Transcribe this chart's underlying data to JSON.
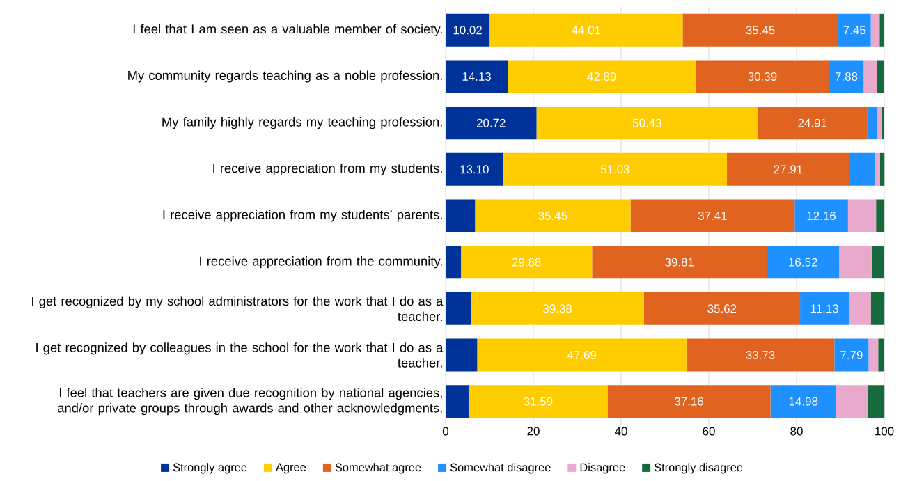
{
  "chart_data": {
    "type": "bar",
    "orientation": "horizontal",
    "stacked": true,
    "categories": [
      "I feel that I am seen as a valuable member of society.",
      "My community regards teaching as a noble profession.",
      "My family highly regards my teaching profession.",
      "I receive appreciation from my students.",
      "I receive appreciation from my students’ parents.",
      "I receive appreciation from the community.",
      "I get recognized by my school administrators for the work that I do as a teacher.",
      "I get recognized by colleagues in the school for the work that I do as a teacher.",
      "I feel that teachers are given due recognition by national agencies, and/or private groups through awards and other acknowledgments."
    ],
    "series": [
      {
        "name": "Strongly agree",
        "color": "#003399",
        "values": [
          10.02,
          14.13,
          20.72,
          13.1,
          6.7,
          3.5,
          5.8,
          7.2,
          5.3
        ],
        "value_labels": [
          "10.02",
          "14.13",
          "20.72",
          "13.10",
          null,
          null,
          null,
          null,
          null
        ]
      },
      {
        "name": "Agree",
        "color": "#ffcc00",
        "values": [
          44.01,
          42.89,
          50.43,
          51.03,
          35.45,
          29.88,
          39.38,
          47.69,
          31.59
        ],
        "value_labels": [
          "44.01",
          "42.89",
          "50.43",
          "51.03",
          "35.45",
          "29.88",
          "39.38",
          "47.69",
          "31.59"
        ]
      },
      {
        "name": "Somewhat agree",
        "color": "#e06320",
        "values": [
          35.45,
          30.39,
          24.91,
          27.91,
          37.41,
          39.81,
          35.62,
          33.73,
          37.16
        ],
        "value_labels": [
          "35.45",
          "30.39",
          "24.91",
          "27.91",
          "37.41",
          "39.81",
          "35.62",
          "33.73",
          "37.16"
        ]
      },
      {
        "name": "Somewhat disagree",
        "color": "#1e90ff",
        "values": [
          7.45,
          7.88,
          2.3,
          5.8,
          12.16,
          16.52,
          11.13,
          7.79,
          14.98
        ],
        "value_labels": [
          "7.45",
          "7.88",
          null,
          null,
          "12.16",
          "16.52",
          "11.13",
          "7.79",
          "14.98"
        ]
      },
      {
        "name": "Disagree",
        "color": "#e8a9cc",
        "values": [
          2.0,
          3.0,
          1.0,
          1.2,
          6.4,
          7.4,
          5.0,
          2.2,
          7.1
        ]
      },
      {
        "name": "Strongly disagree",
        "color": "#16693a",
        "values": [
          1.0,
          1.7,
          0.6,
          1.0,
          1.9,
          2.9,
          3.1,
          1.4,
          3.9
        ]
      }
    ],
    "xlim": [
      0,
      100
    ],
    "xticks": [
      0,
      20,
      40,
      60,
      80,
      100
    ],
    "grid": "x",
    "legend": "bottom"
  }
}
